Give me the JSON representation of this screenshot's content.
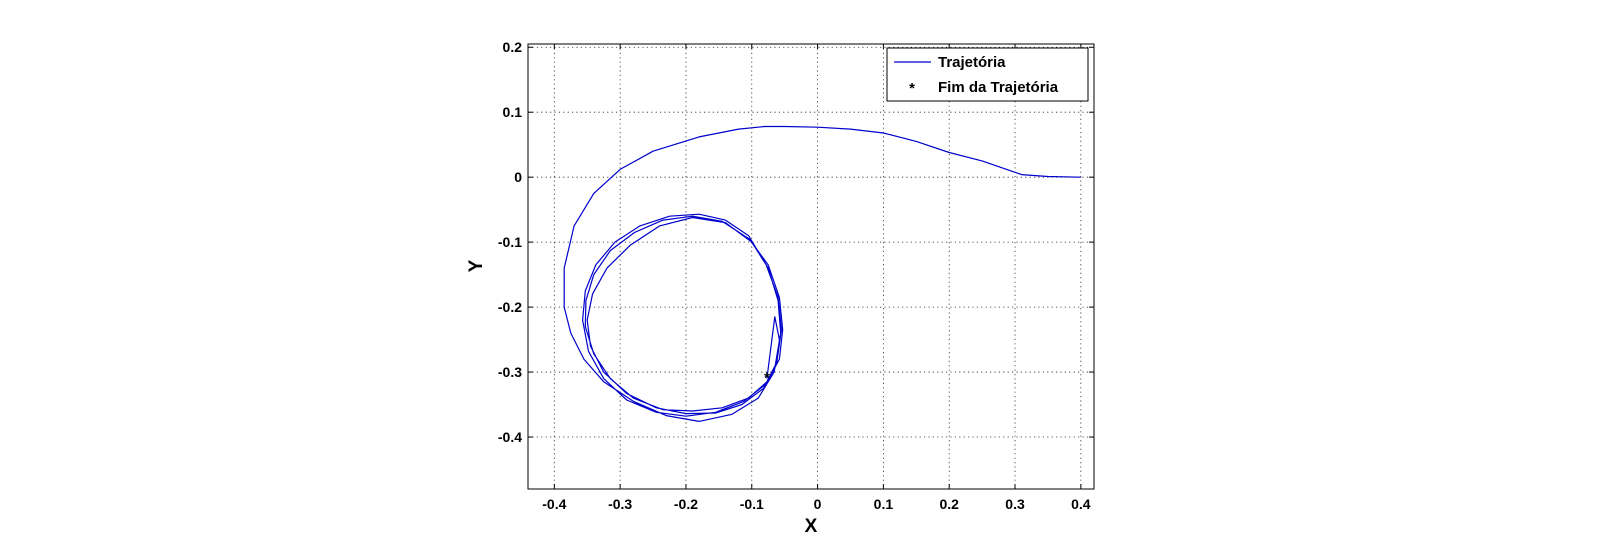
{
  "chart_data": {
    "type": "line",
    "title": "",
    "xlabel": "X",
    "ylabel": "Y",
    "xlim": [
      -0.44,
      0.42
    ],
    "ylim": [
      -0.48,
      0.205
    ],
    "xticks": [
      -0.4,
      -0.3,
      -0.2,
      -0.1,
      0,
      0.1,
      0.2,
      0.3,
      0.4
    ],
    "yticks": [
      -0.4,
      -0.3,
      -0.2,
      -0.1,
      0,
      0.1,
      0.2
    ],
    "xtick_labels": [
      "-0.4",
      "-0.3",
      "-0.2",
      "-0.1",
      "0",
      "0.1",
      "0.2",
      "0.3",
      "0.4"
    ],
    "ytick_labels": [
      "-0.4",
      "-0.3",
      "-0.2",
      "-0.1",
      "0",
      "0.1",
      "0.2"
    ],
    "grid": true,
    "legend_position": "top-right",
    "series": [
      {
        "name": "Trajetória",
        "color": "#0000cc",
        "marker": "line",
        "x": [
          0.4,
          0.35,
          0.31,
          0.25,
          0.2,
          0.15,
          0.1,
          0.05,
          0.0,
          -0.05,
          -0.08,
          -0.12,
          -0.18,
          -0.25,
          -0.3,
          -0.34,
          -0.37,
          -0.385,
          -0.385,
          -0.375,
          -0.355,
          -0.325,
          -0.28,
          -0.23,
          -0.18,
          -0.13,
          -0.09,
          -0.066,
          -0.056,
          -0.06,
          -0.075,
          -0.1,
          -0.14,
          -0.19,
          -0.24,
          -0.285,
          -0.32,
          -0.342,
          -0.35,
          -0.345,
          -0.325,
          -0.29,
          -0.245,
          -0.2,
          -0.155,
          -0.115,
          -0.082,
          -0.062,
          -0.055,
          -0.06,
          -0.078,
          -0.105,
          -0.14,
          -0.18,
          -0.225,
          -0.27,
          -0.308,
          -0.337,
          -0.353,
          -0.357,
          -0.348,
          -0.325,
          -0.29,
          -0.245,
          -0.2,
          -0.155,
          -0.112,
          -0.078,
          -0.058,
          -0.053,
          -0.058,
          -0.075,
          -0.104,
          -0.145,
          -0.19,
          -0.235,
          -0.278,
          -0.315,
          -0.34,
          -0.352,
          -0.353,
          -0.34,
          -0.315,
          -0.28,
          -0.235,
          -0.19,
          -0.145,
          -0.105,
          -0.077,
          -0.062,
          -0.058,
          -0.065,
          -0.077
        ],
        "y": [
          0.0,
          0.001,
          0.004,
          0.025,
          0.038,
          0.055,
          0.068,
          0.074,
          0.077,
          0.078,
          0.078,
          0.074,
          0.062,
          0.04,
          0.012,
          -0.025,
          -0.075,
          -0.14,
          -0.2,
          -0.24,
          -0.28,
          -0.315,
          -0.345,
          -0.367,
          -0.376,
          -0.365,
          -0.34,
          -0.3,
          -0.24,
          -0.19,
          -0.14,
          -0.1,
          -0.07,
          -0.062,
          -0.075,
          -0.105,
          -0.14,
          -0.18,
          -0.22,
          -0.26,
          -0.3,
          -0.333,
          -0.355,
          -0.364,
          -0.363,
          -0.35,
          -0.325,
          -0.285,
          -0.235,
          -0.185,
          -0.135,
          -0.09,
          -0.066,
          -0.057,
          -0.06,
          -0.075,
          -0.1,
          -0.135,
          -0.175,
          -0.22,
          -0.268,
          -0.31,
          -0.343,
          -0.362,
          -0.368,
          -0.362,
          -0.345,
          -0.318,
          -0.28,
          -0.235,
          -0.185,
          -0.135,
          -0.095,
          -0.068,
          -0.06,
          -0.066,
          -0.085,
          -0.113,
          -0.15,
          -0.19,
          -0.23,
          -0.272,
          -0.31,
          -0.34,
          -0.358,
          -0.36,
          -0.355,
          -0.34,
          -0.315,
          -0.285,
          -0.25,
          -0.215,
          -0.31
        ]
      },
      {
        "name": "Fim da Trajetória",
        "color": "#dd0000",
        "marker": "*",
        "x": [
          -0.077
        ],
        "y": [
          -0.307
        ]
      }
    ]
  }
}
